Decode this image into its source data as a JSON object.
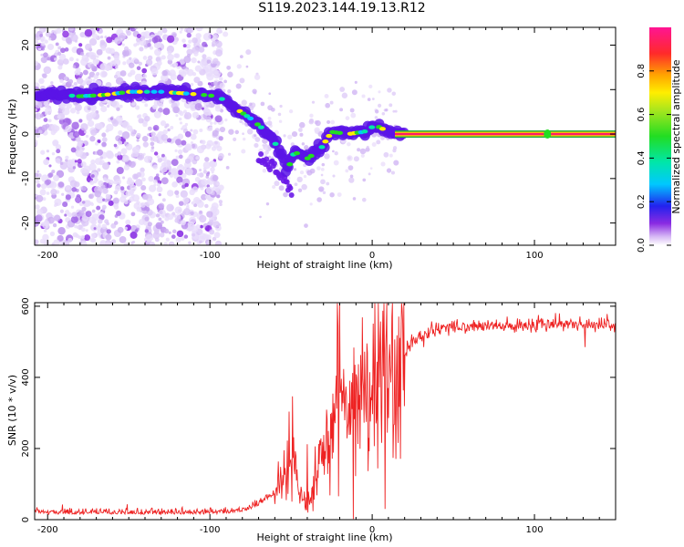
{
  "title": "S119.2023.144.19.13.R12",
  "colors": {
    "axis": "#000000",
    "snr_line": "#ee2222",
    "spectral_low": "#8a2be2",
    "spectral_high": "#ff1493"
  },
  "chart_data": [
    {
      "type": "heatmap",
      "xlabel": "Height of straight line (km)",
      "ylabel": "Frequency (Hz)",
      "xlim": [
        -208,
        150
      ],
      "ylim": [
        -25,
        24
      ],
      "xticks": [
        -200,
        -100,
        0,
        100
      ],
      "yticks": [
        -20,
        -10,
        0,
        10,
        20
      ],
      "colorbar": {
        "label": "Normalized spectral amplitude",
        "range": [
          0,
          1
        ],
        "ticks": [
          "0.0",
          "0.2",
          "0.4",
          "0.6",
          "0.8"
        ],
        "colormap": "rainbow (purple to magenta)"
      },
      "ridge": [
        {
          "x": -200,
          "y": 9.0
        },
        {
          "x": -180,
          "y": 8.5
        },
        {
          "x": -165,
          "y": 8.8
        },
        {
          "x": -150,
          "y": 9.5
        },
        {
          "x": -130,
          "y": 9.5
        },
        {
          "x": -110,
          "y": 9.0
        },
        {
          "x": -95,
          "y": 8.5
        },
        {
          "x": -85,
          "y": 6.0
        },
        {
          "x": -75,
          "y": 3.5
        },
        {
          "x": -65,
          "y": 0.5
        },
        {
          "x": -58,
          "y": -3.0
        },
        {
          "x": -52,
          "y": -8.0
        },
        {
          "x": -48,
          "y": -4.0
        },
        {
          "x": -40,
          "y": -5.5
        },
        {
          "x": -32,
          "y": -3.5
        },
        {
          "x": -25,
          "y": 0.5
        },
        {
          "x": -15,
          "y": 0.0
        },
        {
          "x": -5,
          "y": 0.5
        },
        {
          "x": 2,
          "y": 2.0
        },
        {
          "x": 10,
          "y": 0.5
        },
        {
          "x": 20,
          "y": 0.0
        },
        {
          "x": 150,
          "y": 0.0
        }
      ],
      "secondary_branch": [
        {
          "x": -68,
          "y": -6.0
        },
        {
          "x": -60,
          "y": -7.5
        },
        {
          "x": -55,
          "y": -10.0
        },
        {
          "x": -50,
          "y": -13.5
        }
      ]
    },
    {
      "type": "line",
      "xlabel": "Height of straight line (km)",
      "ylabel": "SNR (10 * v/v)",
      "xlim": [
        -208,
        150
      ],
      "ylim": [
        0,
        610
      ],
      "xticks": [
        -200,
        -100,
        0,
        100
      ],
      "yticks": [
        0,
        200,
        400,
        600
      ],
      "series": [
        {
          "x": [
            -208,
            -150,
            -100,
            -80,
            -70,
            -60,
            -55,
            -50,
            -45,
            -40,
            -35,
            -30,
            -25,
            -20,
            -15,
            -10,
            -5,
            0,
            5,
            10,
            15,
            20,
            25,
            30,
            35,
            40,
            50,
            60,
            80,
            100,
            120,
            150
          ],
          "values": [
            15,
            15,
            15,
            20,
            40,
            70,
            110,
            150,
            80,
            30,
            120,
            180,
            270,
            320,
            300,
            330,
            320,
            360,
            390,
            420,
            440,
            470,
            500,
            515,
            525,
            535,
            540,
            543,
            545,
            548,
            550,
            548
          ]
        }
      ]
    }
  ]
}
